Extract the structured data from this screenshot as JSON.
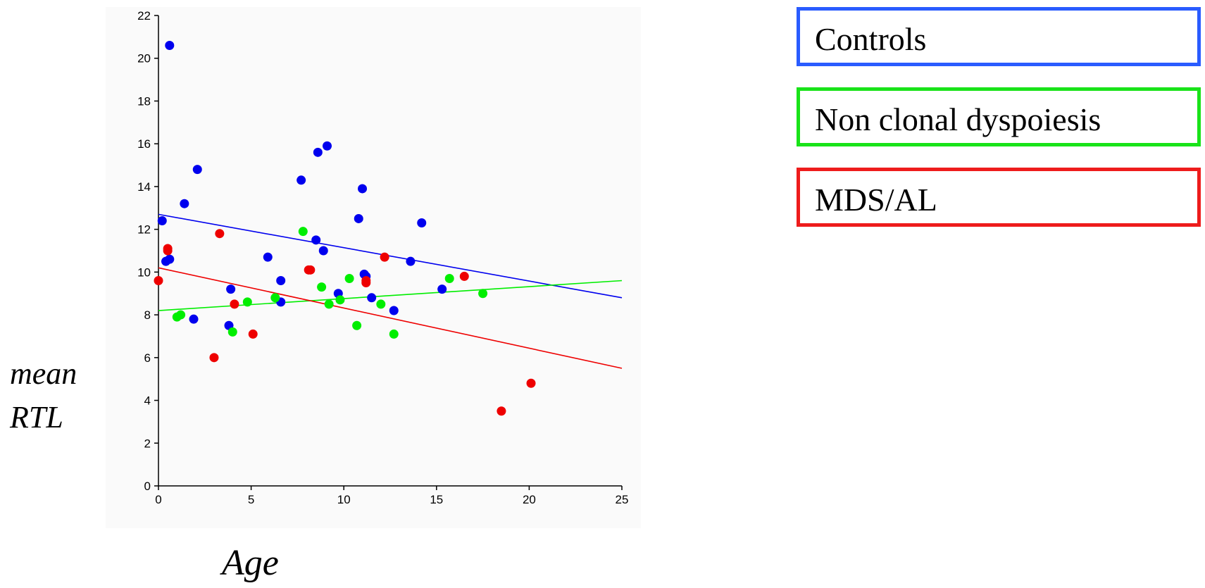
{
  "chart_data": {
    "type": "scatter",
    "xlabel": "Age",
    "ylabel_lines": [
      "mean",
      "RTL"
    ],
    "xlim": [
      0,
      25
    ],
    "ylim": [
      0,
      22
    ],
    "x_ticks": [
      0,
      5,
      10,
      15,
      20,
      25
    ],
    "y_ticks": [
      0,
      2,
      4,
      6,
      8,
      10,
      12,
      14,
      16,
      18,
      20,
      22
    ],
    "grid": false,
    "legend_position": "top-right",
    "series": [
      {
        "name": "Controls",
        "color": "#0000ee",
        "points": [
          [
            0.2,
            12.4
          ],
          [
            0.4,
            10.5
          ],
          [
            0.6,
            10.6
          ],
          [
            0.6,
            20.6
          ],
          [
            1.4,
            13.2
          ],
          [
            1.9,
            7.8
          ],
          [
            2.1,
            14.8
          ],
          [
            3.8,
            7.5
          ],
          [
            3.9,
            9.2
          ],
          [
            5.9,
            10.7
          ],
          [
            6.6,
            9.6
          ],
          [
            6.6,
            8.6
          ],
          [
            7.7,
            14.3
          ],
          [
            8.5,
            11.5
          ],
          [
            8.6,
            15.6
          ],
          [
            8.9,
            11.0
          ],
          [
            9.1,
            15.9
          ],
          [
            9.7,
            9.0
          ],
          [
            10.8,
            12.5
          ],
          [
            11.0,
            13.9
          ],
          [
            11.1,
            9.9
          ],
          [
            11.2,
            9.8
          ],
          [
            11.5,
            8.8
          ],
          [
            12.7,
            8.2
          ],
          [
            13.6,
            10.5
          ],
          [
            14.2,
            12.3
          ],
          [
            15.3,
            9.2
          ]
        ],
        "trend": [
          [
            0,
            12.7
          ],
          [
            25,
            8.8
          ]
        ]
      },
      {
        "name": "Non clonal dyspoiesis",
        "color": "#00ee00",
        "points": [
          [
            1.0,
            7.9
          ],
          [
            1.2,
            8.0
          ],
          [
            4.0,
            7.2
          ],
          [
            4.8,
            8.6
          ],
          [
            6.3,
            8.8
          ],
          [
            7.8,
            11.9
          ],
          [
            8.8,
            9.3
          ],
          [
            9.2,
            8.5
          ],
          [
            9.8,
            8.7
          ],
          [
            10.3,
            9.7
          ],
          [
            10.7,
            7.5
          ],
          [
            12.0,
            8.5
          ],
          [
            12.7,
            7.1
          ],
          [
            15.7,
            9.7
          ],
          [
            17.5,
            9.0
          ]
        ],
        "trend": [
          [
            0,
            8.2
          ],
          [
            25,
            9.6
          ]
        ]
      },
      {
        "name": "MDS/AL",
        "color": "#ee0000",
        "points": [
          [
            0.0,
            9.6
          ],
          [
            0.5,
            11.1
          ],
          [
            0.5,
            11.0
          ],
          [
            3.0,
            6.0
          ],
          [
            3.3,
            11.8
          ],
          [
            4.1,
            8.5
          ],
          [
            5.1,
            7.1
          ],
          [
            8.1,
            10.1
          ],
          [
            8.2,
            10.1
          ],
          [
            11.2,
            9.6
          ],
          [
            11.2,
            9.5
          ],
          [
            12.2,
            10.7
          ],
          [
            16.5,
            9.8
          ],
          [
            18.5,
            3.5
          ],
          [
            20.1,
            4.8
          ]
        ],
        "trend": [
          [
            0,
            10.2
          ],
          [
            25,
            5.5
          ]
        ]
      }
    ]
  },
  "legend": [
    {
      "label": "Controls",
      "border_color": "#2a5cff"
    },
    {
      "label": "Non clonal dyspoiesis",
      "border_color": "#19e319"
    },
    {
      "label": "MDS/AL",
      "border_color": "#ee1c1c"
    }
  ]
}
